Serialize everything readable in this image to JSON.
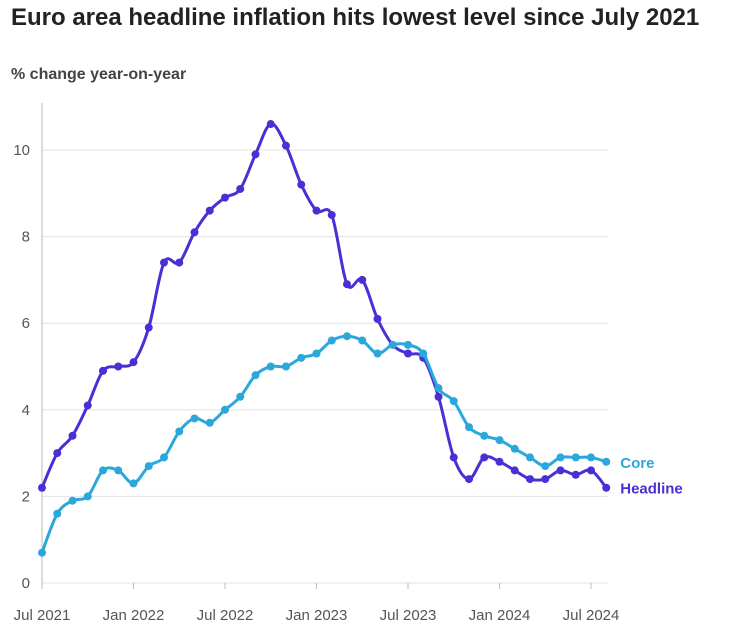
{
  "title": "Euro area headline inflation hits lowest level since July 2021",
  "subtitle": "% change year-on-year",
  "chart_data": {
    "type": "line",
    "title": "Euro area headline inflation hits lowest level since July 2021",
    "ylabel": "% change year-on-year",
    "xlabel": "",
    "ylim": [
      0,
      11
    ],
    "yticks": [
      0,
      2,
      4,
      6,
      8,
      10
    ],
    "x": [
      "2021-07",
      "2021-08",
      "2021-09",
      "2021-10",
      "2021-11",
      "2021-12",
      "2022-01",
      "2022-02",
      "2022-03",
      "2022-04",
      "2022-05",
      "2022-06",
      "2022-07",
      "2022-08",
      "2022-09",
      "2022-10",
      "2022-11",
      "2022-12",
      "2023-01",
      "2023-02",
      "2023-03",
      "2023-04",
      "2023-05",
      "2023-06",
      "2023-07",
      "2023-08",
      "2023-09",
      "2023-10",
      "2023-11",
      "2023-12",
      "2024-01",
      "2024-02",
      "2024-03",
      "2024-04",
      "2024-05",
      "2024-06",
      "2024-07",
      "2024-08"
    ],
    "xticks": [
      {
        "index": 0,
        "label": "Jul 2021"
      },
      {
        "index": 6,
        "label": "Jan 2022"
      },
      {
        "index": 12,
        "label": "Jul 2022"
      },
      {
        "index": 18,
        "label": "Jan 2023"
      },
      {
        "index": 24,
        "label": "Jul 2023"
      },
      {
        "index": 30,
        "label": "Jan 2024"
      },
      {
        "index": 36,
        "label": "Jul 2024"
      }
    ],
    "series": [
      {
        "name": "Headline",
        "color": "#4a2fd4",
        "values": [
          2.2,
          3.0,
          3.4,
          4.1,
          4.9,
          5.0,
          5.1,
          5.9,
          7.4,
          7.4,
          8.1,
          8.6,
          8.9,
          9.1,
          9.9,
          10.6,
          10.1,
          9.2,
          8.6,
          8.5,
          6.9,
          7.0,
          6.1,
          5.5,
          5.3,
          5.2,
          4.3,
          2.9,
          2.4,
          2.9,
          2.8,
          2.6,
          2.4,
          2.4,
          2.6,
          2.5,
          2.6,
          2.2
        ]
      },
      {
        "name": "Core",
        "color": "#2aa8dc",
        "values": [
          0.7,
          1.6,
          1.9,
          2.0,
          2.6,
          2.6,
          2.3,
          2.7,
          2.9,
          3.5,
          3.8,
          3.7,
          4.0,
          4.3,
          4.8,
          5.0,
          5.0,
          5.2,
          5.3,
          5.6,
          5.7,
          5.6,
          5.3,
          5.5,
          5.5,
          5.3,
          4.5,
          4.2,
          3.6,
          3.4,
          3.3,
          3.1,
          2.9,
          2.7,
          2.9,
          2.9,
          2.9,
          2.8
        ]
      }
    ]
  }
}
